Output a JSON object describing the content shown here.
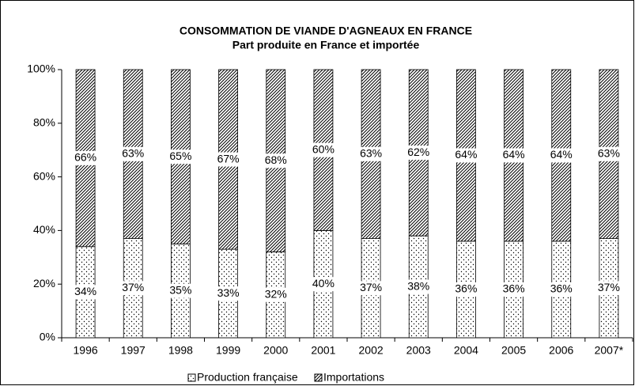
{
  "chart_data": {
    "type": "stacked_bar",
    "title": "CONSOMMATION DE VIANDE D'AGNEAUX EN FRANCE",
    "subtitle": "Part produite en France et importée",
    "categories": [
      "1996",
      "1997",
      "1998",
      "1999",
      "2000",
      "2001",
      "2002",
      "2003",
      "2004",
      "2005",
      "2006",
      "2007*"
    ],
    "series": [
      {
        "name": "Production française",
        "color": "#000000",
        "pattern": "dots",
        "values": [
          34,
          37,
          35,
          33,
          32,
          40,
          37,
          38,
          36,
          36,
          36,
          37
        ],
        "value_labels": [
          "34%",
          "37%",
          "35%",
          "33%",
          "32%",
          "40%",
          "37%",
          "38%",
          "36%",
          "36%",
          "36%",
          "37%"
        ]
      },
      {
        "name": "Importations",
        "color": "#000000",
        "pattern": "hatch",
        "values": [
          66,
          63,
          65,
          67,
          68,
          60,
          63,
          62,
          64,
          64,
          64,
          63
        ],
        "value_labels": [
          "66%",
          "63%",
          "65%",
          "67%",
          "68%",
          "60%",
          "63%",
          "62%",
          "64%",
          "64%",
          "64%",
          "63%"
        ]
      }
    ],
    "ylim": [
      0,
      100
    ],
    "yticks": [
      {
        "value": 0,
        "label": "0%"
      },
      {
        "value": 20,
        "label": "20%"
      },
      {
        "value": 40,
        "label": "40%"
      },
      {
        "value": 60,
        "label": "60%"
      },
      {
        "value": 80,
        "label": "80%"
      },
      {
        "value": 100,
        "label": "100%"
      }
    ],
    "grid": false,
    "legend": "bottom"
  }
}
